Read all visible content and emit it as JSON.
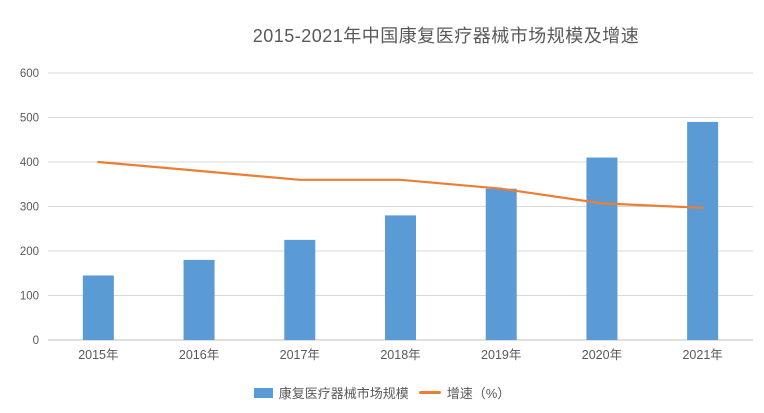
{
  "chart_data": {
    "type": "bar",
    "subtype": "combo-bar-line",
    "title": "2015-2021年中国康复医疗器械市场规模及增速",
    "categories": [
      "2015年",
      "2016年",
      "2017年",
      "2018年",
      "2019年",
      "2020年",
      "2021年"
    ],
    "series": [
      {
        "name": "康复医疗器械市场规模",
        "type": "bar",
        "color": "#5B9BD5",
        "values": [
          145,
          180,
          225,
          280,
          340,
          410,
          490
        ]
      },
      {
        "name": "增速（%）",
        "type": "line",
        "color": "#ED7D31",
        "values": [
          400,
          380,
          360,
          360,
          340,
          307,
          297
        ]
      }
    ],
    "xlabel": "",
    "ylabel": "",
    "y_axis": {
      "min": 0,
      "max": 600,
      "step": 100,
      "ticks": [
        "0",
        "100",
        "200",
        "300",
        "400",
        "500",
        "600"
      ]
    },
    "grid": true,
    "legend_position": "bottom"
  },
  "colors": {
    "bar": "#5B9BD5",
    "line": "#ED7D31",
    "gridline": "#D9D9D9",
    "axis_line": "#BFBFBF",
    "text": "#595959",
    "background": "#FFFFFF"
  }
}
